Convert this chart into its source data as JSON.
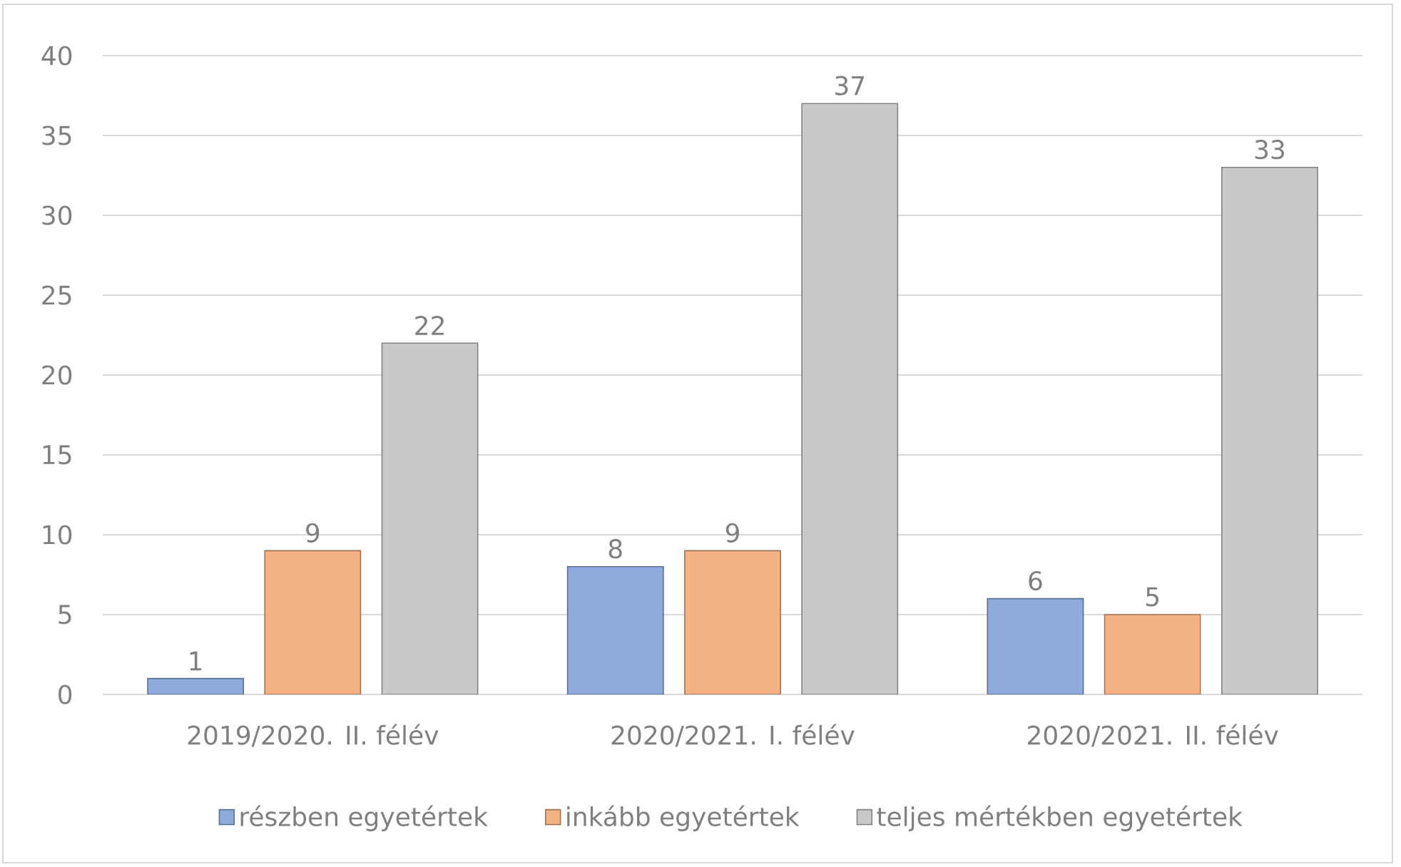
{
  "chart_data": {
    "type": "bar",
    "categories": [
      "2019/2020. II. félév",
      "2020/2021. I. félév",
      "2020/2021. II. félév"
    ],
    "series": [
      {
        "name": "részben egyetértek",
        "color": "#8faadc",
        "values": [
          1,
          8,
          6
        ]
      },
      {
        "name": "inkább egyetértek",
        "color": "#f4b183",
        "values": [
          9,
          9,
          5
        ]
      },
      {
        "name": "teljes mértékben egyetértek",
        "color": "#c9c9c9",
        "values": [
          22,
          37,
          33
        ]
      }
    ],
    "ylim": [
      0,
      40
    ],
    "yticks": [
      0,
      5,
      10,
      15,
      20,
      25,
      30,
      35,
      40
    ],
    "grid": "y",
    "legend": "bottom",
    "data_labels": true
  }
}
